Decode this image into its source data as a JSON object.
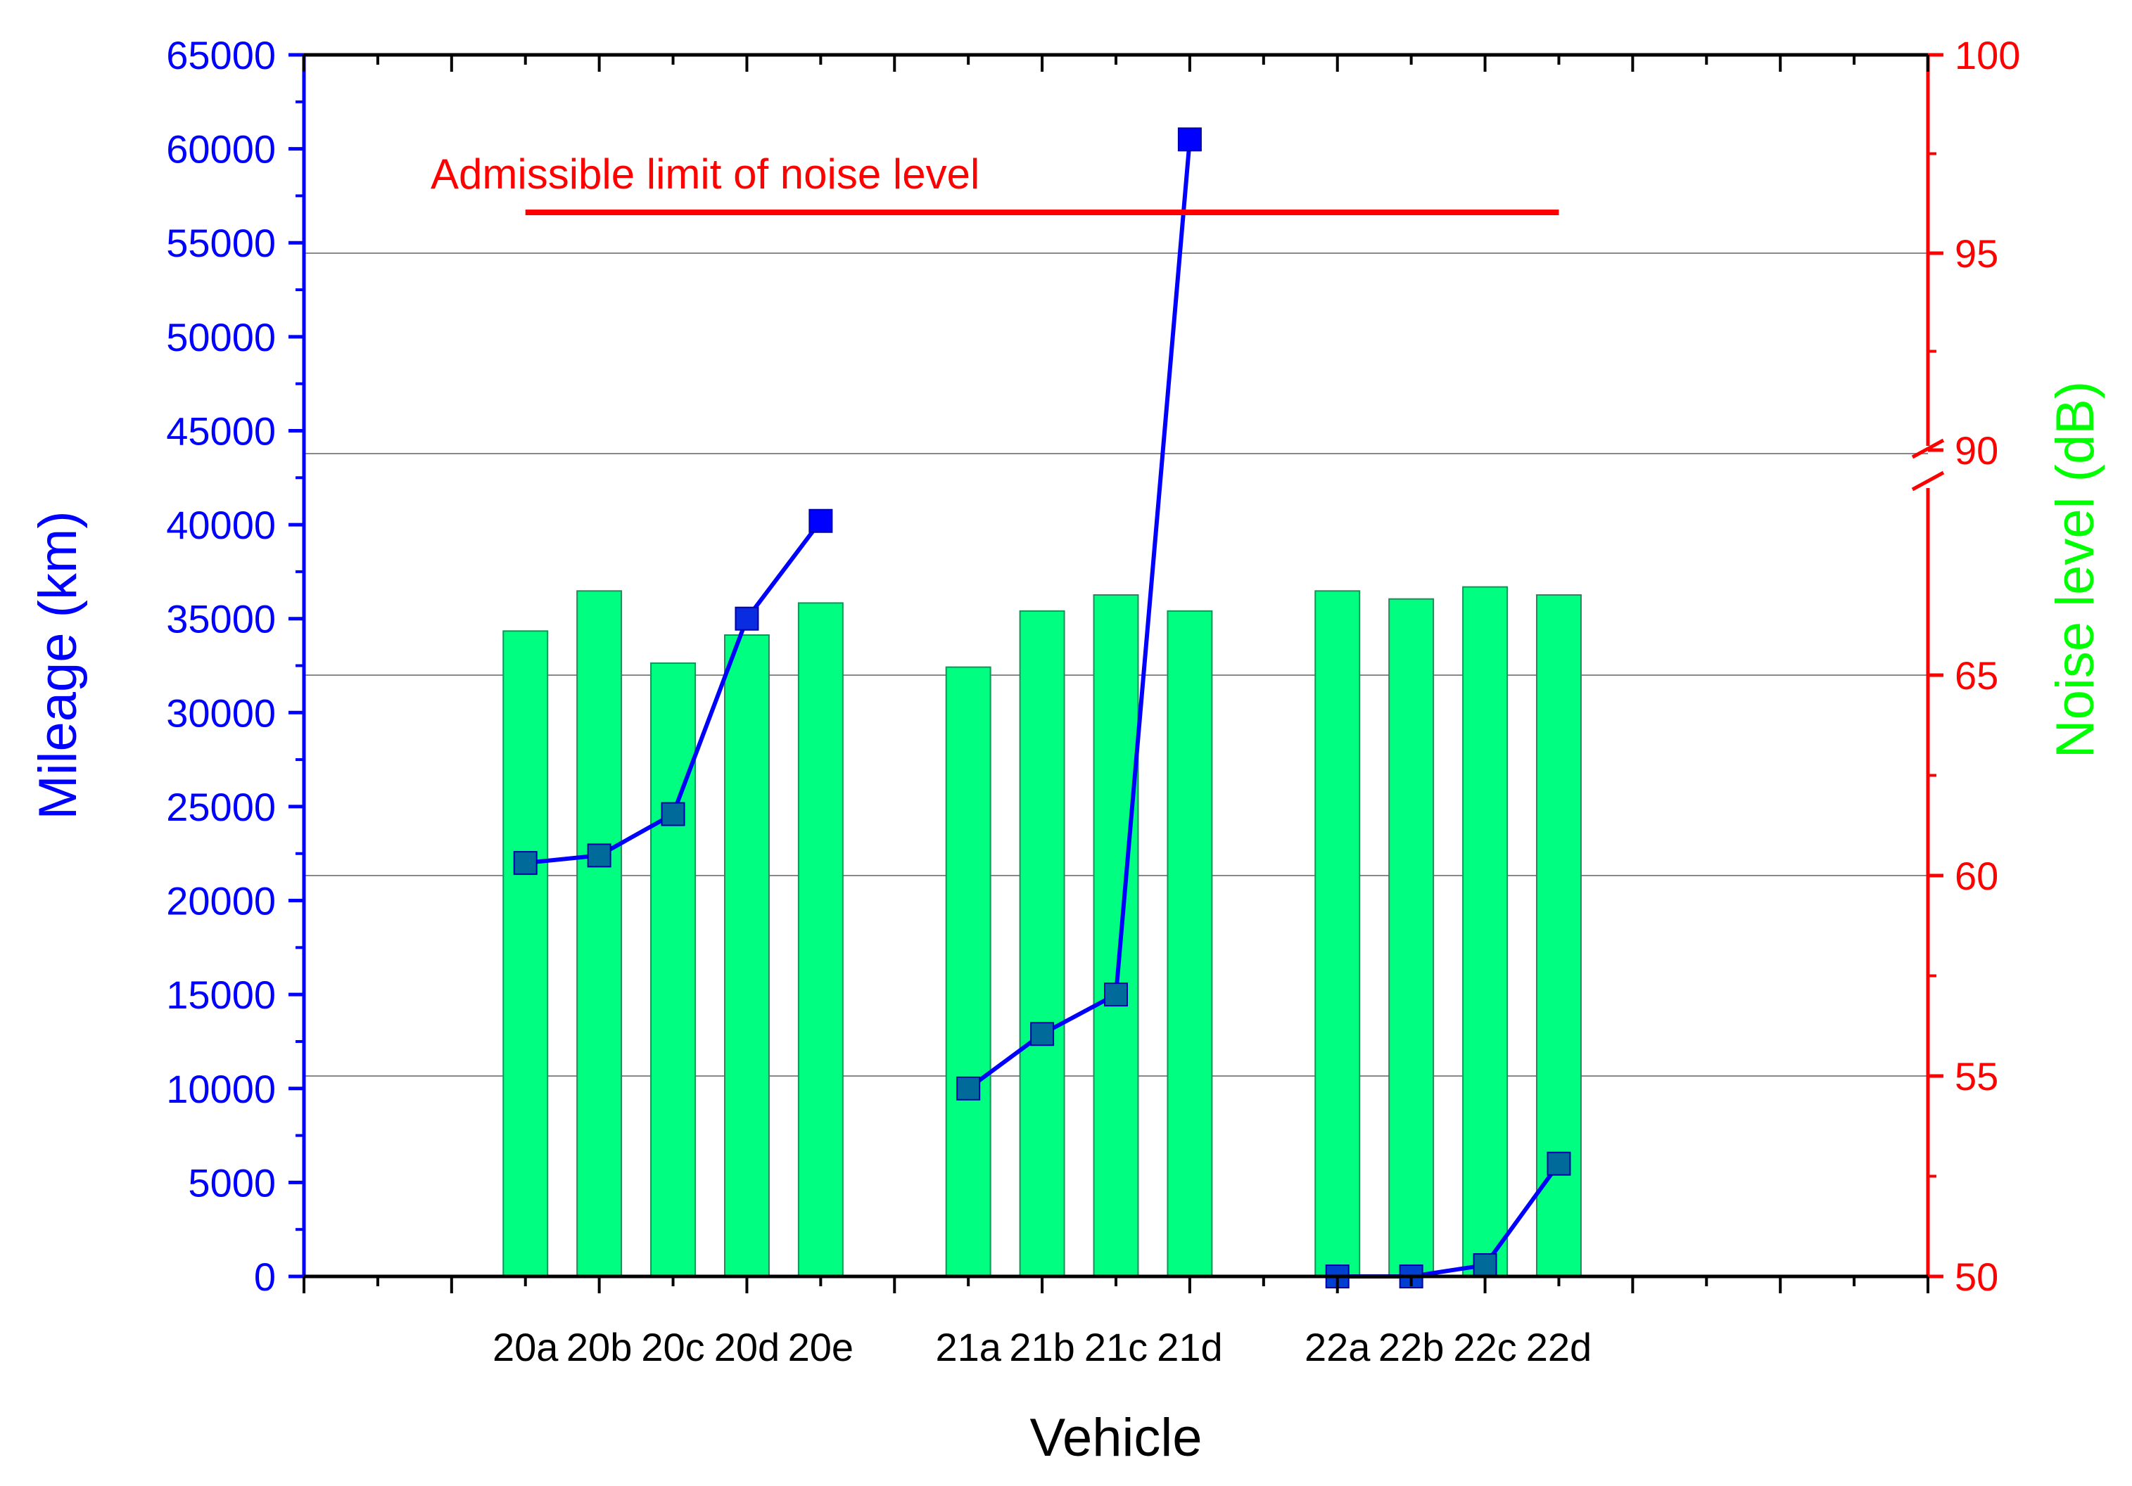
{
  "chart_data": {
    "type": "bar",
    "title": "",
    "xlabel": "Vehicle",
    "categories": [
      "20a",
      "20b",
      "20c",
      "20d",
      "20e",
      "21a",
      "21b",
      "21c",
      "21d",
      "22a",
      "22b",
      "22c",
      "22d"
    ],
    "slot_positions": [
      3,
      4,
      5,
      6,
      7,
      9,
      10,
      11,
      12,
      14,
      15,
      16,
      17
    ],
    "series": [
      {
        "name": "Mileage (km)",
        "kind": "line",
        "axis": "left",
        "color": "#0000ff",
        "marker_colors": [
          "#006a9a",
          "#006a9a",
          "#006a9a",
          "#0a2ce0",
          "#0000ff",
          "#006a9a",
          "#006a9a",
          "#006a9a",
          "#0000ff",
          "#0040d0",
          "#0040d0",
          "#006a9a",
          "#006a9a"
        ],
        "segments": [
          [
            0,
            1,
            2,
            3,
            4
          ],
          [
            5,
            6,
            7,
            8
          ],
          [
            9,
            10,
            11,
            12
          ]
        ],
        "values": [
          22000,
          22400,
          24600,
          35000,
          40200,
          10000,
          12900,
          15000,
          60500,
          0,
          0,
          600,
          6000
        ]
      },
      {
        "name": "Noise level (dB)",
        "kind": "bar",
        "axis": "right",
        "color": "#00ff80",
        "values": [
          66.1,
          67.1,
          65.3,
          66.0,
          66.8,
          65.2,
          66.6,
          67.0,
          66.6,
          67.1,
          66.9,
          67.2,
          67.0
        ]
      }
    ],
    "y_left": {
      "label": "Mileage (km)",
      "color": "#0000ff",
      "min": 0,
      "max": 65000,
      "ticks": [
        0,
        5000,
        10000,
        15000,
        20000,
        25000,
        30000,
        35000,
        40000,
        45000,
        50000,
        55000,
        60000,
        65000
      ]
    },
    "y_right": {
      "label": "Noise level (dB)",
      "label_color": "#00ff00",
      "color": "#ff0000",
      "broken": true,
      "break_between": [
        68,
        90
      ],
      "lower_range": [
        50,
        68
      ],
      "upper_range": [
        90,
        100
      ],
      "ticks": [
        50,
        55,
        60,
        65,
        90,
        95,
        100
      ]
    },
    "grid": "horizontal at right-axis ticks",
    "annotations": [
      {
        "text": "Admissible limit of noise level",
        "color": "#ff0000",
        "value": 96,
        "axis": "right",
        "from_slot": 3,
        "to_slot": 17
      }
    ]
  }
}
